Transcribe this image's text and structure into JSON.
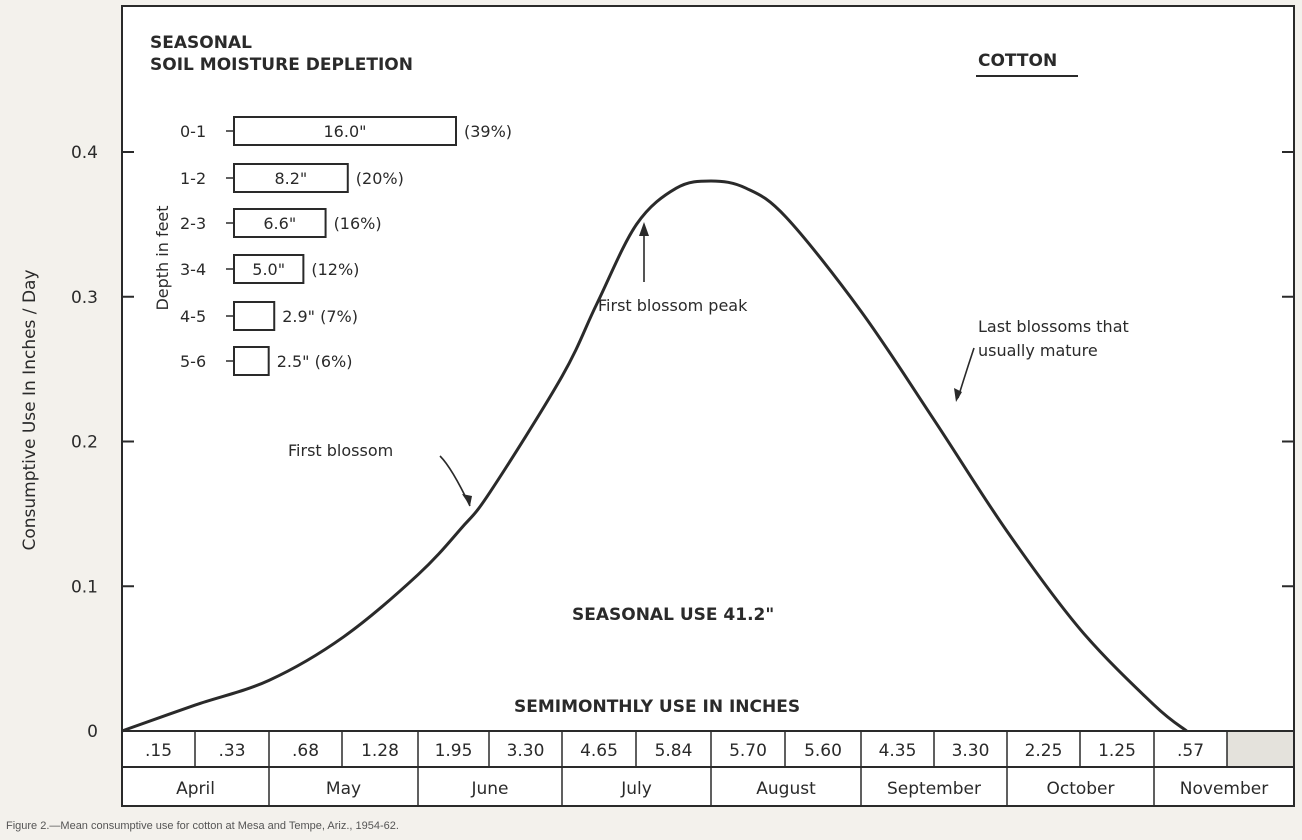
{
  "chart_data": {
    "type": "line",
    "title": "SEASONAL",
    "subtitle": "SOIL MOISTURE DEPLETION",
    "crop": "COTTON",
    "ylabel": "Consumptive Use In Inches / Day",
    "ylim": [
      0,
      0.4
    ],
    "yticks": [
      "0.4",
      "0.3",
      "0.2",
      "0.1",
      "0"
    ],
    "grid": false,
    "x_months": [
      "April",
      "May",
      "June",
      "July",
      "August",
      "September",
      "October",
      "November"
    ],
    "series": [
      {
        "x": [
          "Apr 1",
          "Apr 16",
          "May 1",
          "May 16",
          "Jun 1",
          "Jun 10",
          "Jun 16",
          "Jul 1",
          "Jul 8",
          "Jul 16",
          "Jul 24",
          "Aug 1",
          "Aug 8",
          "Aug 16",
          "Sep 1",
          "Sep 16",
          "Oct 1",
          "Oct 16",
          "Nov 1",
          "Nov 8"
        ],
        "y": [
          0.0,
          0.018,
          0.035,
          0.065,
          0.108,
          0.14,
          0.165,
          0.245,
          0.295,
          0.35,
          0.375,
          0.38,
          0.375,
          0.355,
          0.29,
          0.215,
          0.138,
          0.07,
          0.018,
          0.0
        ]
      }
    ],
    "annotations": {
      "first_blossom": "First blossom",
      "first_blossom_peak": "First blossom peak",
      "last_blossoms_1": "Last blossoms that",
      "last_blossoms_2": "usually mature",
      "seasonal_use": "SEASONAL USE 41.2\""
    },
    "depth_inset": {
      "axis_label": "Depth in feet",
      "rows": [
        {
          "depth": "0-1",
          "value": 16.0,
          "label": "16.0\"",
          "pct": "(39%)"
        },
        {
          "depth": "1-2",
          "value": 8.2,
          "label": "8.2\"",
          "pct": "(20%)"
        },
        {
          "depth": "2-3",
          "value": 6.6,
          "label": "6.6\"",
          "pct": "(16%)"
        },
        {
          "depth": "3-4",
          "value": 5.0,
          "label": "5.0\"",
          "pct": "(12%)"
        },
        {
          "depth": "4-5",
          "value": 2.9,
          "label": "",
          "pct": "2.9\" (7%)"
        },
        {
          "depth": "5-6",
          "value": 2.5,
          "label": "",
          "pct": "2.5\" (6%)"
        }
      ]
    },
    "semimonthly": {
      "title": "SEMIMONTHLY USE IN INCHES",
      "values": [
        ".15",
        ".33",
        ".68",
        "1.28",
        "1.95",
        "3.30",
        "4.65",
        "5.84",
        "5.70",
        "5.60",
        "4.35",
        "3.30",
        "2.25",
        "1.25",
        ".57"
      ]
    }
  },
  "caption": "Figure 2.—Mean consumptive use for cotton at Mesa and Tempe, Ariz., 1954-62."
}
